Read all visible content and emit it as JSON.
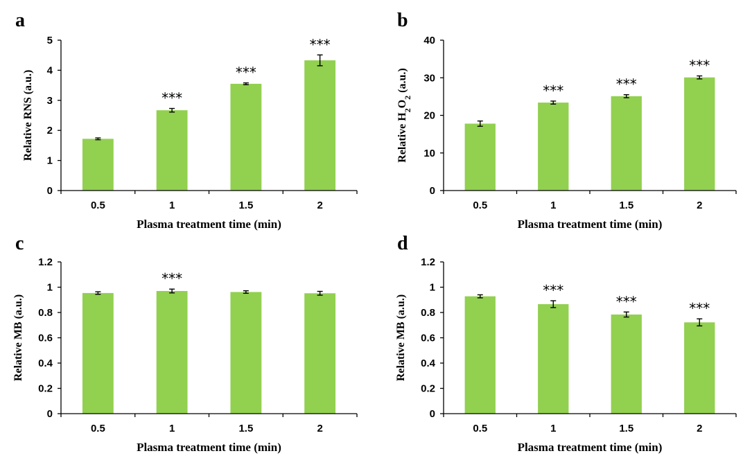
{
  "chart_data": [
    {
      "panel": "a",
      "type": "bar",
      "categories": [
        "0.5",
        "1",
        "1.5",
        "2"
      ],
      "values": [
        1.72,
        2.67,
        3.55,
        4.33
      ],
      "errors": [
        0.03,
        0.06,
        0.03,
        0.18
      ],
      "significance": [
        "",
        "***",
        "***",
        "***"
      ],
      "ylim": [
        0,
        5
      ],
      "yticks": [
        "0",
        "1",
        "2",
        "3",
        "4",
        "5"
      ],
      "xlabel": "Plasma treatment time (min)",
      "ylabel": "Relative RNS (a.u.)",
      "ylabel_sub": "",
      "ylabel_suffix": "",
      "color": "#92d050"
    },
    {
      "panel": "b",
      "type": "bar",
      "categories": [
        "0.5",
        "1",
        "1.5",
        "2"
      ],
      "values": [
        17.8,
        23.4,
        25.1,
        30.1
      ],
      "errors": [
        0.7,
        0.4,
        0.4,
        0.4
      ],
      "significance": [
        "",
        "***",
        "***",
        "***"
      ],
      "ylim": [
        0,
        40
      ],
      "yticks": [
        "0",
        "10",
        "20",
        "30",
        "40"
      ],
      "xlabel": "Plasma treatment time (min)",
      "ylabel": "Relative H",
      "ylabel_sub": "2",
      "ylabel_mid": "O",
      "ylabel_sub2": "2",
      "ylabel_suffix": " (a.u.)",
      "color": "#92d050"
    },
    {
      "panel": "c",
      "type": "bar",
      "categories": [
        "0.5",
        "1",
        "1.5",
        "2"
      ],
      "values": [
        0.954,
        0.97,
        0.962,
        0.952
      ],
      "errors": [
        0.01,
        0.015,
        0.01,
        0.015
      ],
      "significance": [
        "",
        "***",
        "",
        ""
      ],
      "ylim": [
        0,
        1.2
      ],
      "yticks": [
        "0",
        "0.2",
        "0.4",
        "0.6",
        "0.8",
        "1",
        "1.2"
      ],
      "xlabel": "Plasma treatment time (min)",
      "ylabel": "Relative MB (a.u.)",
      "ylabel_sub": "",
      "ylabel_suffix": "",
      "color": "#92d050"
    },
    {
      "panel": "d",
      "type": "bar",
      "categories": [
        "0.5",
        "1",
        "1.5",
        "2"
      ],
      "values": [
        0.928,
        0.866,
        0.784,
        0.722
      ],
      "errors": [
        0.012,
        0.027,
        0.02,
        0.028
      ],
      "significance": [
        "",
        "***",
        "***",
        "***"
      ],
      "ylim": [
        0,
        1.2
      ],
      "yticks": [
        "0",
        "0.2",
        "0.4",
        "0.6",
        "0.8",
        "1",
        "1.2"
      ],
      "xlabel": "Plasma treatment time (min)",
      "ylabel": "Relative MB (a.u.)",
      "ylabel_sub": "",
      "ylabel_suffix": "",
      "color": "#92d050"
    }
  ]
}
